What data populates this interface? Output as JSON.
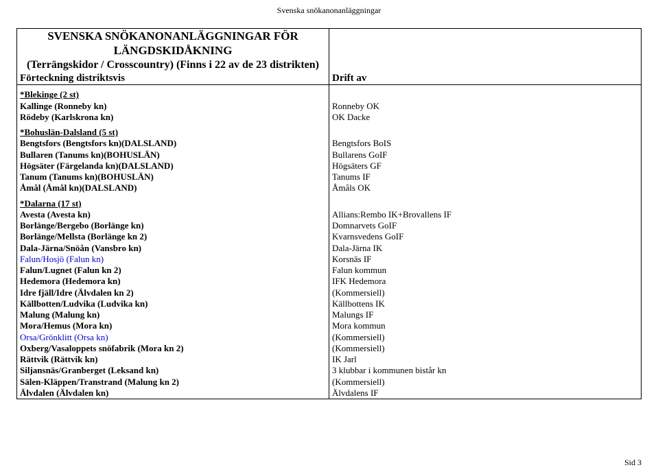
{
  "page_header": "Svenska snökanonanläggningar",
  "title_line1": "SVENSKA SNÖKANONANLÄGGNINGAR FÖR LÄNGDSKIDÅKNING",
  "title_line2": "(Terrängskidor / Crosscountry) (Finns i 22 av de 23 distrikten)",
  "col_header_left": "Förteckning distriktsvis",
  "col_header_right": "Drift av",
  "footer_text": "Sid 3",
  "sections": [
    {
      "heading": "*Blekinge (2 st)",
      "rows": [
        {
          "left": "Kallinge (Ronneby kn)",
          "right": "Ronneby OK",
          "lbold": true
        },
        {
          "left": "Rödeby (Karlskrona kn)",
          "right": "OK Dacke",
          "lbold": true
        }
      ]
    },
    {
      "heading": "*Bohuslän-Dalsland (5 st)",
      "rows": [
        {
          "left": "Bengtsfors (Bengtsfors kn)(DALSLAND)",
          "right": "Bengtsfors BoIS",
          "lbold": true
        },
        {
          "left": "Bullaren (Tanums kn)(BOHUSLÄN)",
          "right": "Bullarens GoIF",
          "lbold": true
        },
        {
          "left": "Högsäter (Färgelanda kn)(DALSLAND)",
          "right": "Högsäters GF",
          "lbold": true
        },
        {
          "left": "Tanum (Tanums kn)(BOHUSLÄN)",
          "right": "Tanums IF",
          "lbold": true
        },
        {
          "left": "Åmål (Åmål kn)(DALSLAND)",
          "right": "Åmåls OK",
          "lbold": true
        }
      ]
    },
    {
      "heading": "*Dalarna (17 st)",
      "rows": [
        {
          "left": "Avesta (Avesta kn)",
          "right": "Allians:Rembo IK+Brovallens IF",
          "lbold": true
        },
        {
          "left": "Borlänge/Bergebo (Borlänge kn)",
          "right": "Domnarvets GoIF",
          "lbold": true
        },
        {
          "left": "Borlänge/Mellsta (Borlänge kn 2)",
          "right": "Kvarnsvedens GoIF",
          "lbold": true
        },
        {
          "left": "Dala-Järna/Snöån (Vansbro kn)",
          "right": "Dala-Järna IK",
          "lbold": true
        },
        {
          "left": "Falun/Hosjö (Falun kn)",
          "right": "Korsnäs IF",
          "blue": true
        },
        {
          "left": "Falun/Lugnet (Falun kn 2)",
          "right": "Falun kommun",
          "lbold": true
        },
        {
          "left": "Hedemora (Hedemora kn)",
          "right": "IFK Hedemora",
          "lbold": true
        },
        {
          "left": "Idre fjäll/Idre (Älvdalen kn 2)",
          "right": "(Kommersiell)",
          "lbold": true
        },
        {
          "left": "Källbotten/Ludvika (Ludvika kn)",
          "right": "Källbottens IK",
          "lbold": true
        },
        {
          "left": "Malung (Malung kn)",
          "right": "Malungs IF",
          "lbold": true
        },
        {
          "left": "Mora/Hemus (Mora kn)",
          "right": "Mora kommun",
          "lbold": true
        },
        {
          "left": "Orsa/Grönklitt (Orsa kn)",
          "right": "(Kommersiell)",
          "blue": true
        },
        {
          "left": "Oxberg/Vasaloppets snöfabrik (Mora kn 2)",
          "right": "(Kommersiell)",
          "lbold": true
        },
        {
          "left": "Rättvik (Rättvik kn)",
          "right": "IK Jarl",
          "lbold": true
        },
        {
          "left": "Siljansnäs/Granberget (Leksand kn)",
          "right": "3 klubbar i kommunen bistår kn",
          "lbold": true
        },
        {
          "left": "Sälen-Kläppen/Transtrand (Malung kn 2)",
          "right": "(Kommersiell)",
          "lbold": true
        },
        {
          "left": "Älvdalen (Älvdalen kn)",
          "right": "Älvdalens IF",
          "lbold": true
        }
      ]
    }
  ]
}
